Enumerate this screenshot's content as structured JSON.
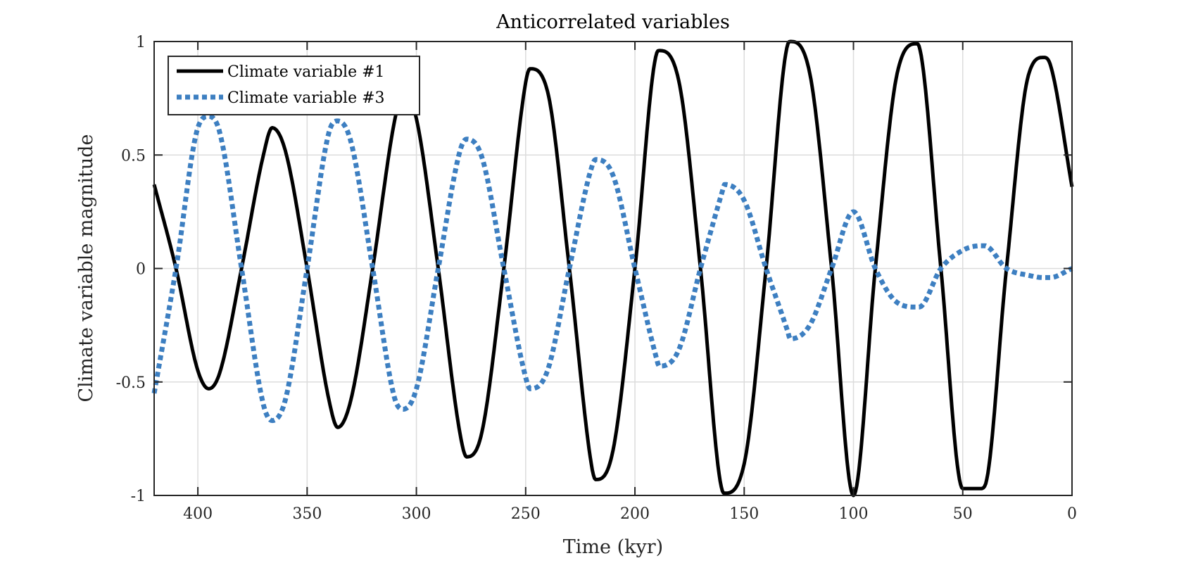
{
  "chart_data": {
    "type": "line",
    "title": "Anticorrelated variables",
    "xlabel": "Time (kyr)",
    "ylabel": "Climate variable magnitude",
    "xlim": [
      420,
      0
    ],
    "x_reversed": true,
    "ylim": [
      -1,
      1
    ],
    "xticks": [
      400,
      350,
      300,
      250,
      200,
      150,
      100,
      50,
      0
    ],
    "xtick_labels": [
      "400",
      "350",
      "300",
      "250",
      "200",
      "150",
      "100",
      "50",
      "0"
    ],
    "yticks": [
      1,
      0.5,
      0,
      -0.5,
      -1
    ],
    "ytick_labels": [
      "1",
      "0.5",
      "0",
      "-0.5",
      "-1"
    ],
    "grid": true,
    "legend_position": "top-left",
    "x": [
      420,
      410,
      400,
      395,
      390,
      380,
      370,
      366,
      360,
      350,
      340,
      336,
      330,
      320,
      310,
      306,
      300,
      290,
      280,
      277,
      270,
      260,
      250,
      248,
      240,
      230,
      220,
      218,
      210,
      200,
      190,
      189,
      180,
      170,
      160,
      159,
      150,
      140,
      130,
      129,
      120,
      110,
      100,
      90,
      80,
      71,
      70,
      60,
      50,
      42,
      40,
      30,
      20,
      13,
      10,
      0
    ],
    "series": [
      {
        "name": "Climate variable #1",
        "color": "#000000",
        "style": "solid",
        "values": [
          0.37,
          0.0,
          -0.45,
          -0.53,
          -0.46,
          0.0,
          0.5,
          0.62,
          0.52,
          0.0,
          -0.58,
          -0.7,
          -0.58,
          0.0,
          0.65,
          0.78,
          0.66,
          0.0,
          -0.73,
          -0.83,
          -0.72,
          0.0,
          0.82,
          0.88,
          0.78,
          0.0,
          -0.86,
          -0.93,
          -0.8,
          0.0,
          0.95,
          0.96,
          0.83,
          0.0,
          -0.98,
          -0.99,
          -0.86,
          0.0,
          0.99,
          1.0,
          0.86,
          0.0,
          -1.0,
          0.0,
          0.86,
          0.99,
          0.98,
          0.0,
          -0.97,
          -0.97,
          -0.96,
          0.0,
          0.85,
          0.93,
          0.9,
          0.36
        ]
      },
      {
        "name": "Climate variable #3",
        "color": "#3d7fc1",
        "style": "dotted",
        "values": [
          -0.55,
          0.0,
          0.62,
          0.67,
          0.6,
          0.0,
          -0.6,
          -0.67,
          -0.58,
          0.0,
          0.6,
          0.65,
          0.56,
          0.0,
          -0.57,
          -0.62,
          -0.53,
          0.0,
          0.52,
          0.57,
          0.49,
          0.0,
          -0.48,
          -0.53,
          -0.45,
          0.0,
          0.44,
          0.48,
          0.41,
          0.0,
          -0.4,
          -0.43,
          -0.36,
          0.0,
          0.34,
          0.37,
          0.3,
          0.0,
          -0.28,
          -0.31,
          -0.25,
          0.0,
          0.25,
          0.0,
          -0.15,
          -0.17,
          -0.17,
          0.0,
          0.08,
          0.1,
          0.1,
          0.0,
          -0.03,
          -0.04,
          -0.04,
          0.0
        ]
      }
    ]
  }
}
